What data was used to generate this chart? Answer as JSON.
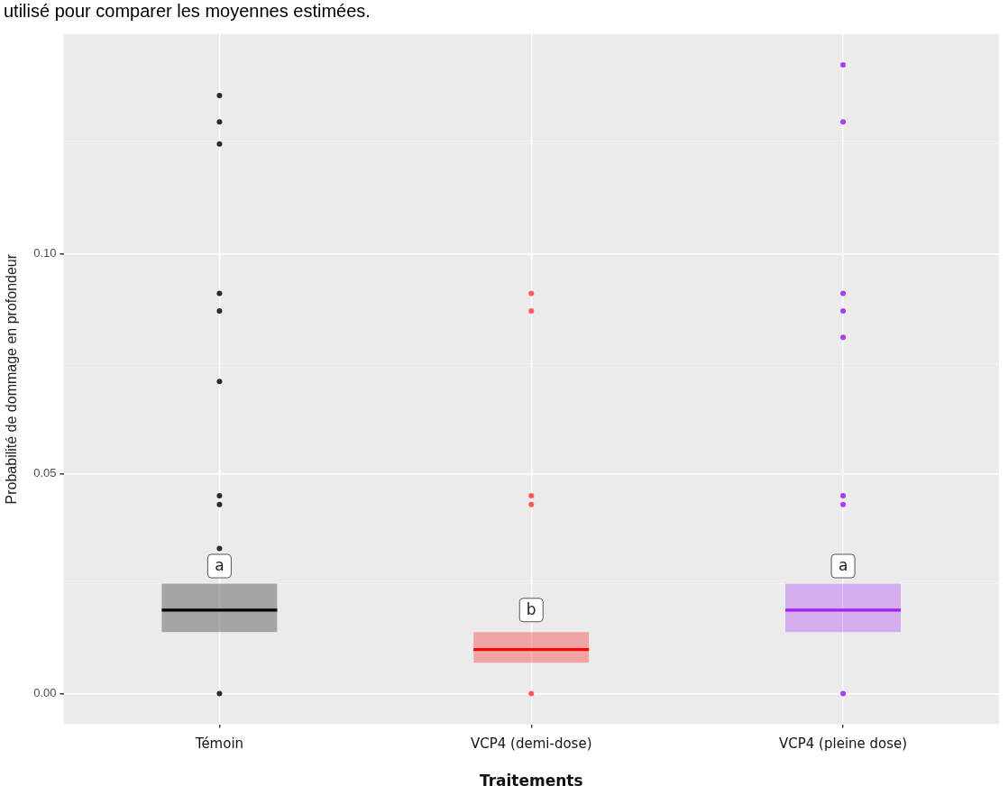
{
  "chart_data": {
    "type": "box",
    "categories": [
      "Témoin",
      "VCP4 (demi-dose)",
      "VCP4 (pleine dose)"
    ],
    "xlabel": "Traitements",
    "ylabel": "Probabilité de dommage en profondeur",
    "ylim": [
      -0.007,
      0.15
    ],
    "yticks": [
      {
        "value": 0,
        "label": "0.00"
      },
      {
        "value": 0.025,
        "label": null
      },
      {
        "value": 0.05,
        "label": "0.05"
      },
      {
        "value": 0.075,
        "label": null
      },
      {
        "value": 0.1,
        "label": "0.10"
      },
      {
        "value": 0.125,
        "label": null
      }
    ],
    "grid": true,
    "marker": "circle",
    "series": [
      {
        "colors": [
          "#000000",
          "#ff0000",
          "#a020f0"
        ],
        "boxes": [
          {
            "low": 0.014,
            "q1": 0.014,
            "median": 0.019,
            "q3": 0.025,
            "high": 0.025
          },
          {
            "low": 0.007,
            "q1": 0.007,
            "median": 0.01,
            "q3": 0.014,
            "high": 0.014
          },
          {
            "low": 0.014,
            "q1": 0.014,
            "median": 0.019,
            "q3": 0.025,
            "high": 0.025
          }
        ]
      },
      {
        "type": "scatter",
        "color": "#2b2b2b",
        "x": [
          "Témoin",
          "Témoin",
          "Témoin",
          "Témoin",
          "Témoin",
          "Témoin",
          "Témoin",
          "Témoin",
          "Témoin",
          "Témoin"
        ],
        "values": [
          0.136,
          0.13,
          0.125,
          0.091,
          0.087,
          0.071,
          0.045,
          0.043,
          0.033,
          0
        ]
      },
      {
        "type": "scatter",
        "color": "#ff5a5a",
        "x": [
          "VCP4 (demi-dose)",
          "VCP4 (demi-dose)",
          "VCP4 (demi-dose)",
          "VCP4 (demi-dose)",
          "VCP4 (demi-dose)"
        ],
        "values": [
          0.091,
          0.087,
          0.045,
          0.043,
          0
        ]
      },
      {
        "type": "scatter",
        "color": "#a83ef0",
        "x": [
          "VCP4 (pleine dose)",
          "VCP4 (pleine dose)",
          "VCP4 (pleine dose)",
          "VCP4 (pleine dose)",
          "VCP4 (pleine dose)",
          "VCP4 (pleine dose)",
          "VCP4 (pleine dose)",
          "VCP4 (pleine dose)"
        ],
        "values": [
          0.143,
          0.13,
          0.091,
          0.087,
          0.081,
          0.045,
          0.043,
          0
        ]
      }
    ],
    "annotations": [
      "utilisé pour comparer les moyennes estimées.",
      {
        "text": "a",
        "x": "Témoin",
        "y": 0.029
      },
      {
        "text": "b",
        "x": "VCP4 (demi-dose)",
        "y": 0.019
      },
      {
        "text": "a",
        "x": "VCP4 (pleine dose)",
        "y": 0.029
      }
    ]
  }
}
